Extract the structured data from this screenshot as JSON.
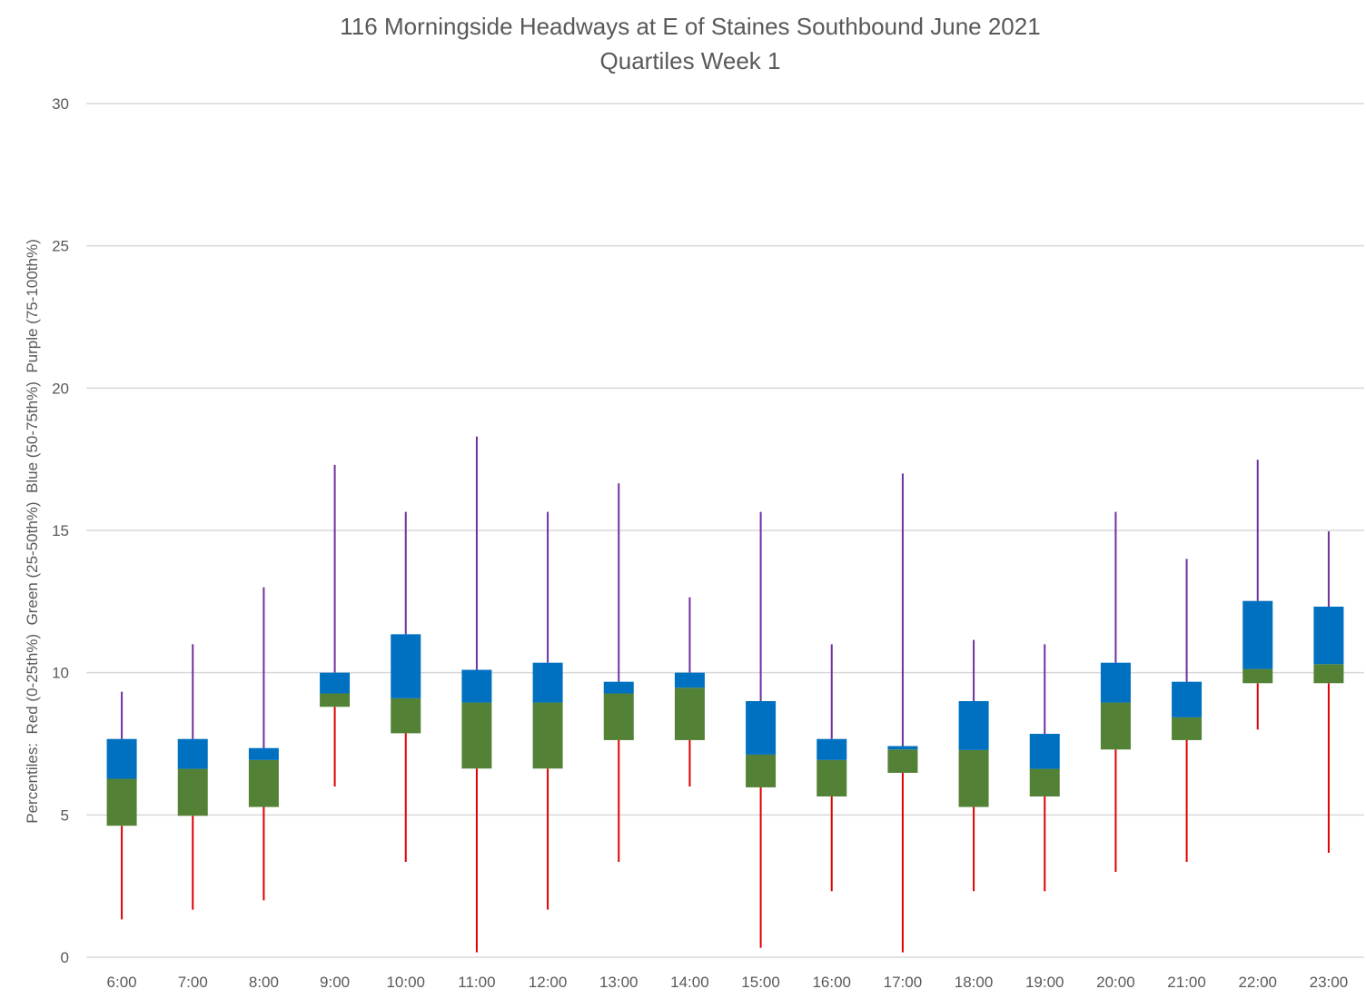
{
  "chart_data": {
    "type": "boxplot",
    "title": "116 Morningside Headways at E of Staines Southbound June 2021",
    "subtitle": "Quartiles Week 1",
    "xlabel": "",
    "ylabel": "Percentiles:  Red (0-25th%)  Green (25-50th%)  Blue (50-75th%)  Purple (75-100th%)",
    "ylim": [
      0,
      30
    ],
    "yticks": [
      0,
      5,
      10,
      15,
      20,
      25,
      30
    ],
    "grid": true,
    "legend": "none",
    "colors": {
      "lower_whisker": "#E00000",
      "q1_to_median": "#538135",
      "median_to_q3": "#0070C0",
      "upper_whisker": "#7030A0",
      "grid": "#D9D9D9",
      "text": "#595959"
    },
    "categories": [
      "6:00",
      "7:00",
      "8:00",
      "9:00",
      "10:00",
      "11:00",
      "12:00",
      "13:00",
      "14:00",
      "15:00",
      "16:00",
      "17:00",
      "18:00",
      "19:00",
      "20:00",
      "21:00",
      "22:00",
      "23:00"
    ],
    "series": [
      {
        "name": "min",
        "values": [
          1.33,
          1.67,
          2.0,
          6.0,
          3.35,
          0.17,
          1.67,
          3.35,
          6.0,
          0.33,
          2.32,
          0.17,
          2.32,
          2.32,
          3.0,
          3.35,
          8.0,
          3.67
        ]
      },
      {
        "name": "q1",
        "values": [
          4.62,
          4.97,
          5.28,
          8.8,
          7.87,
          6.63,
          6.63,
          7.63,
          7.63,
          5.97,
          5.65,
          6.48,
          5.28,
          5.65,
          7.3,
          7.63,
          9.63,
          9.63
        ]
      },
      {
        "name": "median",
        "values": [
          6.27,
          6.62,
          6.93,
          9.27,
          9.1,
          8.95,
          8.95,
          9.27,
          9.47,
          7.12,
          6.93,
          7.3,
          7.28,
          6.62,
          8.95,
          8.43,
          10.13,
          10.3
        ]
      },
      {
        "name": "q3",
        "values": [
          7.67,
          7.67,
          7.35,
          10.0,
          11.35,
          10.1,
          10.35,
          9.68,
          10.0,
          9.0,
          7.67,
          7.42,
          9.0,
          7.85,
          10.35,
          9.68,
          12.52,
          12.32
        ]
      },
      {
        "name": "max",
        "values": [
          9.33,
          11.0,
          13.0,
          17.3,
          15.65,
          18.3,
          15.65,
          16.65,
          12.65,
          15.65,
          11.0,
          17.0,
          11.15,
          11.0,
          15.65,
          14.0,
          17.48,
          14.97
        ]
      }
    ]
  }
}
